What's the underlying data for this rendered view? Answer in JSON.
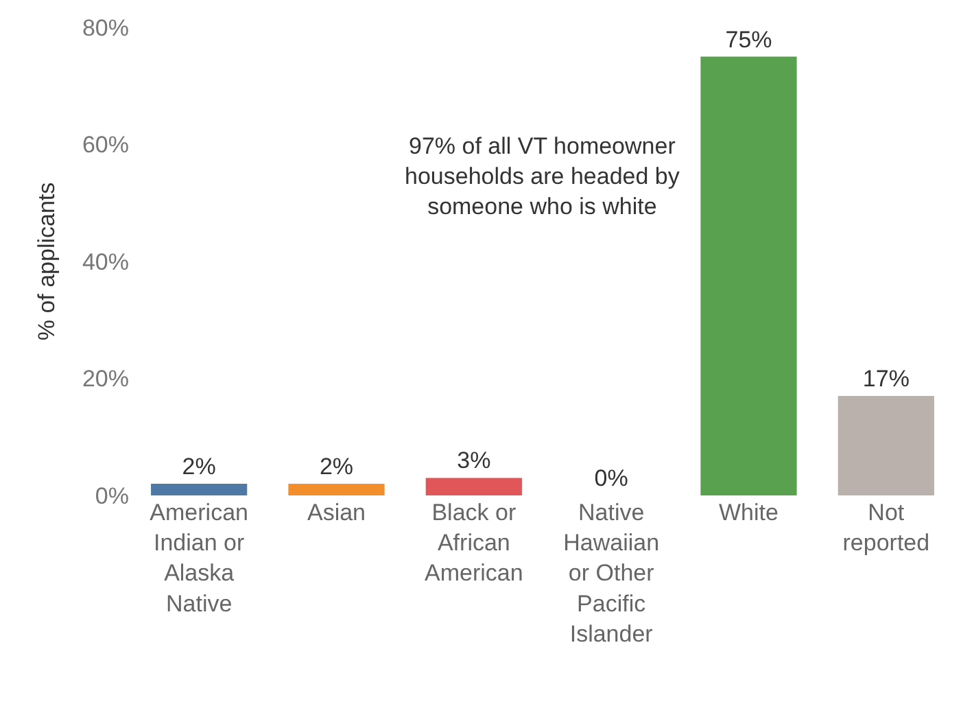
{
  "chart_data": {
    "type": "bar",
    "ylabel": "% of applicants",
    "categories": [
      "American Indian or Alaska Native",
      "Asian",
      "Black or African American",
      "Native Hawaiian or Other Pacific Islander",
      "White",
      "Not reported"
    ],
    "values": [
      2,
      2,
      3,
      0,
      75,
      17
    ],
    "value_labels": [
      "2%",
      "2%",
      "3%",
      "0%",
      "75%",
      "17%"
    ],
    "colors": [
      "#4e79a7",
      "#f28e2b",
      "#e15759",
      "#76b7b2",
      "#59a14f",
      "#bab0ac"
    ],
    "ylim": [
      0,
      80
    ],
    "yticks": [
      {
        "value": 0,
        "label": "0%"
      },
      {
        "value": 20,
        "label": "20%"
      },
      {
        "value": 40,
        "label": "40%"
      },
      {
        "value": 60,
        "label": "60%"
      },
      {
        "value": 80,
        "label": "80%"
      }
    ],
    "legend": false,
    "annotations": [
      "97% of all VT homeowner households are headed by someone who is white"
    ]
  }
}
